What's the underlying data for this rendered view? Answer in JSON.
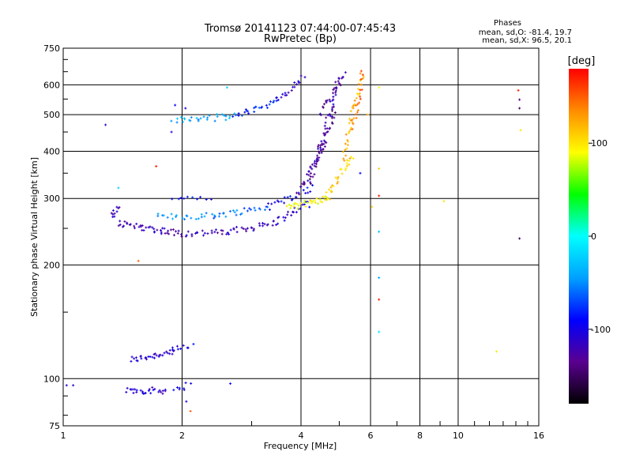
{
  "chart_data": {
    "type": "scatter",
    "title": "Tromsø 20141123 07:44:00-07:45:43",
    "subtitle": "RwPretec (Bp)",
    "xlabel": "Frequency [MHz]",
    "ylabel": "Stationary phase Virtual Height [km]",
    "x_scale": "log",
    "y_scale": "log",
    "xlim": [
      1,
      16
    ],
    "ylim": [
      75,
      750
    ],
    "x_ticks": [
      1,
      2,
      4,
      6,
      8,
      10,
      16
    ],
    "x_tick_labels": [
      "1",
      "2",
      "4",
      "6",
      "8",
      "10",
      "16"
    ],
    "y_ticks": [
      75,
      100,
      200,
      300,
      400,
      500,
      600,
      750
    ],
    "y_tick_labels": [
      "75",
      "100",
      "200",
      "300",
      "400",
      "500",
      "600",
      "750"
    ],
    "grid": true,
    "stats": {
      "heading": "Phases",
      "line_o": "mean, sd,O: -81.4, 19.7",
      "line_x": "mean, sd,X:  96.5, 20.1"
    },
    "colorbar": {
      "label": "[deg]",
      "range": [
        -180,
        180
      ],
      "ticks": [
        100,
        0,
        -100
      ],
      "tick_labels": [
        "100",
        "0",
        "-100"
      ],
      "colors": [
        "#000000",
        "#5a0090",
        "#0000ff",
        "#00a0ff",
        "#00ffff",
        "#00ff00",
        "#ffff00",
        "#ff8c00",
        "#ff0000"
      ]
    },
    "traces": [
      {
        "x0": 1.48,
        "x1": 1.9,
        "h0": 112,
        "h1": 118,
        "phase": -110,
        "n": 30
      },
      {
        "x0": 1.85,
        "x1": 2.12,
        "h0": 118,
        "h1": 122,
        "phase": -100,
        "n": 10
      },
      {
        "x0": 1.45,
        "x1": 1.82,
        "h0": 93,
        "h1": 93,
        "phase": -110,
        "n": 28
      },
      {
        "x0": 1.9,
        "x1": 2.08,
        "h0": 94,
        "h1": 96,
        "phase": -100,
        "n": 8
      },
      {
        "x0": 1.32,
        "x1": 1.38,
        "h0": 270,
        "h1": 282,
        "phase": -120,
        "n": 10
      },
      {
        "x0": 1.38,
        "x1": 2.0,
        "h0": 258,
        "h1": 242,
        "phase": -120,
        "n": 45
      },
      {
        "x0": 2.0,
        "x1": 2.6,
        "h0": 242,
        "h1": 244,
        "phase": -120,
        "n": 22
      },
      {
        "x0": 2.6,
        "x1": 3.4,
        "h0": 244,
        "h1": 258,
        "phase": -115,
        "n": 25
      },
      {
        "x0": 3.4,
        "x1": 4.2,
        "h0": 258,
        "h1": 292,
        "phase": -110,
        "n": 22
      },
      {
        "x0": 1.72,
        "x1": 2.4,
        "h0": 268,
        "h1": 270,
        "phase": -50,
        "n": 22
      },
      {
        "x0": 2.4,
        "x1": 3.3,
        "h0": 270,
        "h1": 285,
        "phase": -60,
        "n": 25
      },
      {
        "x0": 3.3,
        "x1": 4.3,
        "h0": 285,
        "h1": 320,
        "phase": -90,
        "n": 22
      },
      {
        "x0": 1.9,
        "x1": 2.35,
        "h0": 300,
        "h1": 302,
        "phase": -95,
        "n": 10
      },
      {
        "x0": 1.9,
        "x1": 2.7,
        "h0": 482,
        "h1": 495,
        "phase": -40,
        "n": 28
      },
      {
        "x0": 2.7,
        "x1": 3.5,
        "h0": 495,
        "h1": 545,
        "phase": -80,
        "n": 25
      },
      {
        "x0": 3.5,
        "x1": 4.05,
        "h0": 545,
        "h1": 630,
        "phase": -110,
        "n": 18
      },
      {
        "x0": 3.95,
        "x1": 4.6,
        "h0": 310,
        "h1": 420,
        "phase": -125,
        "n": 30
      },
      {
        "x0": 4.2,
        "x1": 4.9,
        "h0": 330,
        "h1": 520,
        "phase": -135,
        "n": 35
      },
      {
        "x0": 4.45,
        "x1": 5.0,
        "h0": 400,
        "h1": 635,
        "phase": -120,
        "n": 30
      },
      {
        "x0": 4.5,
        "x1": 5.15,
        "h0": 500,
        "h1": 640,
        "phase": -130,
        "n": 22
      },
      {
        "x0": 3.7,
        "x1": 4.7,
        "h0": 283,
        "h1": 300,
        "phase": 90,
        "n": 30
      },
      {
        "x0": 4.6,
        "x1": 5.4,
        "h0": 300,
        "h1": 390,
        "phase": 110,
        "n": 30
      },
      {
        "x0": 5.1,
        "x1": 5.7,
        "h0": 380,
        "h1": 640,
        "phase": 120,
        "n": 38
      },
      {
        "x0": 5.4,
        "x1": 5.75,
        "h0": 460,
        "h1": 640,
        "phase": 150,
        "n": 18
      }
    ],
    "scatter_points": [
      {
        "x": 1.02,
        "y": 96,
        "phase": -110
      },
      {
        "x": 1.06,
        "y": 96,
        "phase": -110
      },
      {
        "x": 1.28,
        "y": 470,
        "phase": -110
      },
      {
        "x": 1.38,
        "y": 320,
        "phase": -20
      },
      {
        "x": 1.55,
        "y": 205,
        "phase": 150
      },
      {
        "x": 1.72,
        "y": 365,
        "phase": 170
      },
      {
        "x": 1.88,
        "y": 450,
        "phase": -100
      },
      {
        "x": 1.92,
        "y": 530,
        "phase": -90
      },
      {
        "x": 2.04,
        "y": 520,
        "phase": -100
      },
      {
        "x": 2.1,
        "y": 82,
        "phase": 150
      },
      {
        "x": 2.05,
        "y": 87,
        "phase": -100
      },
      {
        "x": 2.6,
        "y": 590,
        "phase": -20
      },
      {
        "x": 2.65,
        "y": 97,
        "phase": -90
      },
      {
        "x": 5.65,
        "y": 350,
        "phase": -90
      },
      {
        "x": 5.9,
        "y": 500,
        "phase": 120
      },
      {
        "x": 6.05,
        "y": 285,
        "phase": 110
      },
      {
        "x": 6.3,
        "y": 360,
        "phase": 110
      },
      {
        "x": 6.3,
        "y": 305,
        "phase": 170
      },
      {
        "x": 6.3,
        "y": 245,
        "phase": -30
      },
      {
        "x": 6.3,
        "y": 185,
        "phase": -40
      },
      {
        "x": 6.3,
        "y": 162,
        "phase": 170
      },
      {
        "x": 6.3,
        "y": 133,
        "phase": -10
      },
      {
        "x": 6.3,
        "y": 590,
        "phase": 90
      },
      {
        "x": 9.2,
        "y": 295,
        "phase": 100
      },
      {
        "x": 12.5,
        "y": 118,
        "phase": 100
      },
      {
        "x": 14.2,
        "y": 580,
        "phase": 170
      },
      {
        "x": 14.3,
        "y": 548,
        "phase": -140
      },
      {
        "x": 14.3,
        "y": 520,
        "phase": -150
      },
      {
        "x": 14.4,
        "y": 455,
        "phase": 100
      },
      {
        "x": 14.3,
        "y": 235,
        "phase": -150
      }
    ]
  }
}
